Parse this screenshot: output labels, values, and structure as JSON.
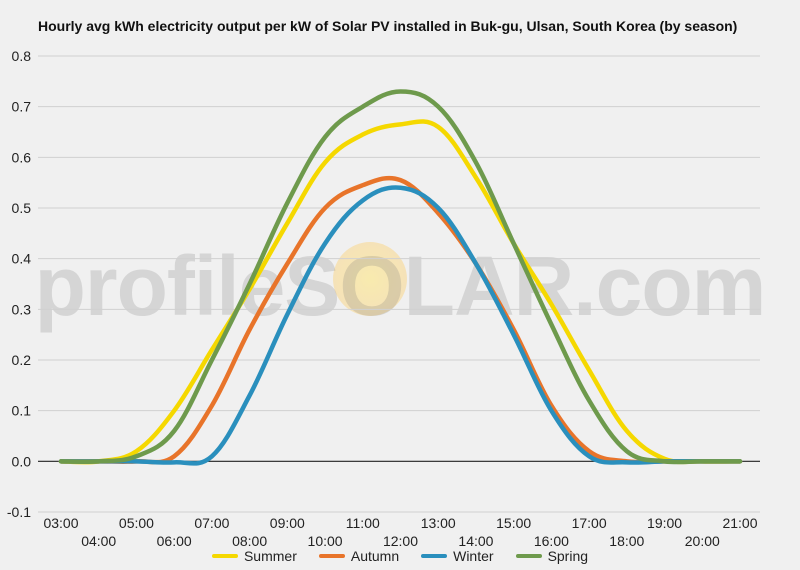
{
  "chart_data": {
    "type": "line",
    "title": "Hourly avg kWh electricity output per kW of Solar PV installed in Buk-gu, Ulsan, South Korea (by season)",
    "xlabel": "",
    "ylabel": "",
    "ylim": [
      -0.1,
      0.8
    ],
    "yticks": [
      "-0.1",
      "0.0",
      "0.1",
      "0.2",
      "0.3",
      "0.4",
      "0.5",
      "0.6",
      "0.7",
      "0.8"
    ],
    "x": [
      "03:00",
      "04:00",
      "05:00",
      "06:00",
      "07:00",
      "08:00",
      "09:00",
      "10:00",
      "11:00",
      "12:00",
      "13:00",
      "14:00",
      "15:00",
      "16:00",
      "17:00",
      "18:00",
      "19:00",
      "20:00",
      "21:00"
    ],
    "grid": true,
    "legend_position": "bottom",
    "series": [
      {
        "name": "Summer",
        "color": "#f5d800",
        "values": [
          0.0,
          0.0,
          0.02,
          0.1,
          0.22,
          0.34,
          0.47,
          0.59,
          0.645,
          0.665,
          0.66,
          0.56,
          0.43,
          0.31,
          0.18,
          0.06,
          0.005,
          0.0,
          0.0
        ]
      },
      {
        "name": "Autumn",
        "color": "#e8742a",
        "values": [
          0.0,
          0.0,
          0.0,
          0.01,
          0.11,
          0.26,
          0.39,
          0.5,
          0.545,
          0.555,
          0.49,
          0.39,
          0.26,
          0.11,
          0.02,
          0.0,
          0.0,
          0.0,
          0.0
        ]
      },
      {
        "name": "Winter",
        "color": "#2a8fbd",
        "values": [
          0.0,
          0.0,
          0.0,
          -0.002,
          0.01,
          0.13,
          0.29,
          0.43,
          0.515,
          0.54,
          0.5,
          0.39,
          0.25,
          0.1,
          0.01,
          -0.002,
          0.0,
          0.0,
          0.0
        ]
      },
      {
        "name": "Spring",
        "color": "#6e9a4c",
        "values": [
          0.0,
          0.0,
          0.01,
          0.06,
          0.2,
          0.35,
          0.51,
          0.64,
          0.7,
          0.73,
          0.7,
          0.59,
          0.43,
          0.27,
          0.12,
          0.02,
          0.0,
          0.0,
          0.0
        ]
      }
    ]
  },
  "watermark": {
    "text": "profileSOLAR.com"
  }
}
